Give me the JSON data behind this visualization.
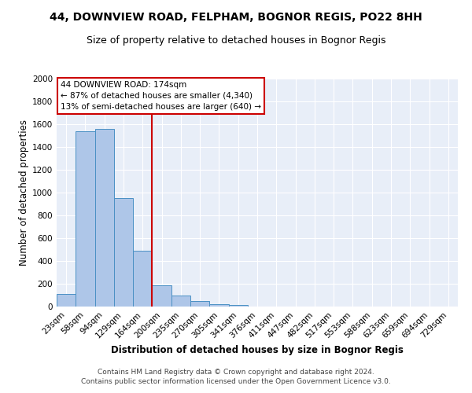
{
  "title_line1": "44, DOWNVIEW ROAD, FELPHAM, BOGNOR REGIS, PO22 8HH",
  "title_line2": "Size of property relative to detached houses in Bognor Regis",
  "xlabel": "Distribution of detached houses by size in Bognor Regis",
  "ylabel": "Number of detached properties",
  "categories": [
    "23sqm",
    "58sqm",
    "94sqm",
    "129sqm",
    "164sqm",
    "200sqm",
    "235sqm",
    "270sqm",
    "305sqm",
    "341sqm",
    "376sqm",
    "411sqm",
    "447sqm",
    "482sqm",
    "517sqm",
    "553sqm",
    "588sqm",
    "623sqm",
    "659sqm",
    "694sqm",
    "729sqm"
  ],
  "values": [
    110,
    1540,
    1560,
    950,
    490,
    185,
    100,
    45,
    22,
    12,
    0,
    0,
    0,
    0,
    0,
    0,
    0,
    0,
    0,
    0,
    0
  ],
  "bar_color": "#aec6e8",
  "bar_edge_color": "#4a90c4",
  "background_color": "#e8eef8",
  "grid_color": "#ffffff",
  "vline_x": 4.5,
  "vline_color": "#cc0000",
  "annotation_line1": "44 DOWNVIEW ROAD: 174sqm",
  "annotation_line2": "← 87% of detached houses are smaller (4,340)",
  "annotation_line3": "13% of semi-detached houses are larger (640) →",
  "annotation_box_color": "#ffffff",
  "annotation_box_edge": "#cc0000",
  "ylim": [
    0,
    2000
  ],
  "yticks": [
    0,
    200,
    400,
    600,
    800,
    1000,
    1200,
    1400,
    1600,
    1800,
    2000
  ],
  "footer_line1": "Contains HM Land Registry data © Crown copyright and database right 2024.",
  "footer_line2": "Contains public sector information licensed under the Open Government Licence v3.0.",
  "title_fontsize": 10,
  "subtitle_fontsize": 9,
  "axis_label_fontsize": 8.5,
  "tick_fontsize": 7.5,
  "annotation_fontsize": 7.5,
  "footer_fontsize": 6.5
}
